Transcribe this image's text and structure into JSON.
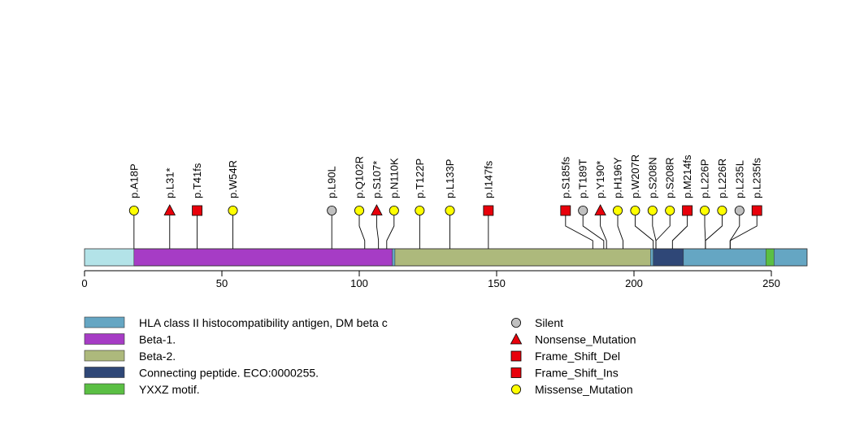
{
  "chart_data": {
    "type": "lollipop",
    "xlim": [
      0,
      264
    ],
    "x_ticks": [
      0,
      50,
      100,
      150,
      200,
      250
    ],
    "protein_length": 263,
    "backbone_color": "#b3e3e8",
    "domains": [
      {
        "name": "HLA class II histocompatibility antigen, DM beta c",
        "start": 18,
        "end": 263,
        "color": "#65a6c3"
      },
      {
        "name": "Beta-1.",
        "start": 18,
        "end": 112,
        "color": "#a63cc5"
      },
      {
        "name": "Beta-2.",
        "start": 113,
        "end": 206,
        "color": "#adb97c"
      },
      {
        "name": "Connecting peptide. ECO:0000255.",
        "start": 207,
        "end": 218,
        "color": "#2f4777"
      },
      {
        "name": "YXXZ motif.",
        "start": 248,
        "end": 251,
        "color": "#5bbf44"
      }
    ],
    "mutation_types": [
      {
        "name": "Silent",
        "shape": "circle",
        "color": "#c0c0c0"
      },
      {
        "name": "Nonsense_Mutation",
        "shape": "triangle",
        "color": "#e8000b"
      },
      {
        "name": "Frame_Shift_Del",
        "shape": "square",
        "color": "#e8000b"
      },
      {
        "name": "Frame_Shift_Ins",
        "shape": "square",
        "color": "#e8000b"
      },
      {
        "name": "Missense_Mutation",
        "shape": "circle",
        "color": "#ffff00"
      }
    ],
    "mutations": [
      {
        "label": "p.A18P",
        "position": 18,
        "type": "Missense_Mutation"
      },
      {
        "label": "p.L31*",
        "position": 31,
        "type": "Nonsense_Mutation"
      },
      {
        "label": "p.T41fs",
        "position": 41,
        "type": "Frame_Shift_Del"
      },
      {
        "label": "p.W54R",
        "position": 54,
        "type": "Missense_Mutation"
      },
      {
        "label": "p.L90L",
        "position": 90,
        "type": "Silent"
      },
      {
        "label": "p.Q102R",
        "position": 102,
        "type": "Missense_Mutation"
      },
      {
        "label": "p.S107*",
        "position": 107,
        "type": "Nonsense_Mutation"
      },
      {
        "label": "p.N110K",
        "position": 110,
        "type": "Missense_Mutation"
      },
      {
        "label": "p.T122P",
        "position": 122,
        "type": "Missense_Mutation"
      },
      {
        "label": "p.L133P",
        "position": 133,
        "type": "Missense_Mutation"
      },
      {
        "label": "p.I147fs",
        "position": 147,
        "type": "Frame_Shift_Del"
      },
      {
        "label": "p.S185fs",
        "position": 185,
        "type": "Frame_Shift_Del"
      },
      {
        "label": "p.T189T",
        "position": 189,
        "type": "Silent"
      },
      {
        "label": "p.Y190*",
        "position": 190,
        "type": "Nonsense_Mutation"
      },
      {
        "label": "p.H196Y",
        "position": 196,
        "type": "Missense_Mutation"
      },
      {
        "label": "p.W207R",
        "position": 207,
        "type": "Missense_Mutation"
      },
      {
        "label": "p.S208N",
        "position": 208,
        "type": "Missense_Mutation"
      },
      {
        "label": "p.S208R",
        "position": 208,
        "type": "Missense_Mutation"
      },
      {
        "label": "p.M214fs",
        "position": 214,
        "type": "Frame_Shift_Del"
      },
      {
        "label": "p.L226P",
        "position": 226,
        "type": "Missense_Mutation"
      },
      {
        "label": "p.L226R",
        "position": 226,
        "type": "Missense_Mutation"
      },
      {
        "label": "p.L235L",
        "position": 235,
        "type": "Silent"
      },
      {
        "label": "p.L235fs",
        "position": 235,
        "type": "Frame_Shift_Del"
      }
    ]
  }
}
